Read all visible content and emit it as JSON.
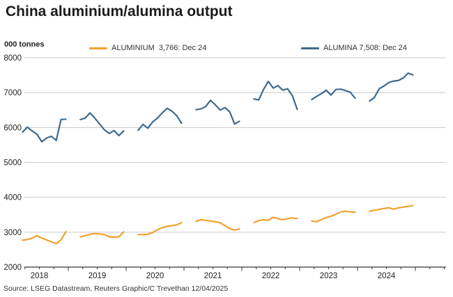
{
  "header": {
    "title": "China aluminium/alumina output"
  },
  "source_line": "Source: LSEG Datastream, Reuters Graphic/C Trevethan 12/04/2025",
  "chart_data": {
    "type": "line",
    "title": "China aluminium/alumina output",
    "unit_label": "000 tonnes",
    "ylim": [
      2000,
      8000
    ],
    "yticks": [
      8000,
      7000,
      6000,
      5000,
      4000,
      3000,
      2000
    ],
    "years": [
      2018,
      2019,
      2020,
      2021,
      2022,
      2023,
      2024
    ],
    "months_per_segment": "Mar-Dec",
    "grid_color": "#c9c9c9",
    "axis_color": "#333333",
    "legend_position": "top",
    "series": [
      {
        "name": "ALUMINIUM",
        "legend_label": "ALUMINIUM  3,766: Dec 24",
        "latest": "3,766: Dec 24",
        "color": "#f0a12f",
        "segments": {
          "2018": [
            2770,
            2790,
            2830,
            2900,
            2830,
            2780,
            2720,
            2670,
            2780,
            3020
          ],
          "2019": [
            2870,
            2900,
            2940,
            2960,
            2950,
            2930,
            2870,
            2860,
            2870,
            3010
          ],
          "2020": [
            2930,
            2930,
            2940,
            2990,
            3070,
            3130,
            3170,
            3190,
            3210,
            3270
          ],
          "2021": [
            3310,
            3360,
            3340,
            3320,
            3300,
            3270,
            3190,
            3100,
            3060,
            3090
          ],
          "2022": [
            3280,
            3330,
            3360,
            3340,
            3430,
            3390,
            3360,
            3390,
            3410,
            3390
          ],
          "2023": [
            3320,
            3300,
            3360,
            3420,
            3460,
            3510,
            3580,
            3600,
            3580,
            3570
          ],
          "2024": [
            3600,
            3630,
            3650,
            3680,
            3700,
            3660,
            3700,
            3720,
            3740,
            3766
          ]
        }
      },
      {
        "name": "ALUMINA",
        "legend_label": "ALUMINA 7,508: Dec 24",
        "latest": "7,508: Dec 24",
        "color": "#3d6a8f",
        "segments": {
          "2018": [
            5870,
            6010,
            5900,
            5810,
            5590,
            5700,
            5750,
            5630,
            6230,
            6240
          ],
          "2019": [
            6230,
            6270,
            6420,
            6270,
            6100,
            5930,
            5830,
            5910,
            5770,
            5900
          ],
          "2020": [
            5920,
            6090,
            5980,
            6160,
            6270,
            6420,
            6550,
            6470,
            6340,
            6120
          ],
          "2021": [
            6510,
            6530,
            6600,
            6780,
            6650,
            6500,
            6570,
            6450,
            6100,
            6180
          ],
          "2022": [
            6820,
            6790,
            7090,
            7320,
            7130,
            7200,
            7070,
            7110,
            6910,
            6520
          ],
          "2023": [
            6800,
            6890,
            6970,
            7070,
            6930,
            7090,
            7100,
            7060,
            7010,
            6840
          ],
          "2024": [
            6760,
            6860,
            7110,
            7190,
            7290,
            7330,
            7350,
            7420,
            7560,
            7508
          ]
        }
      }
    ]
  }
}
